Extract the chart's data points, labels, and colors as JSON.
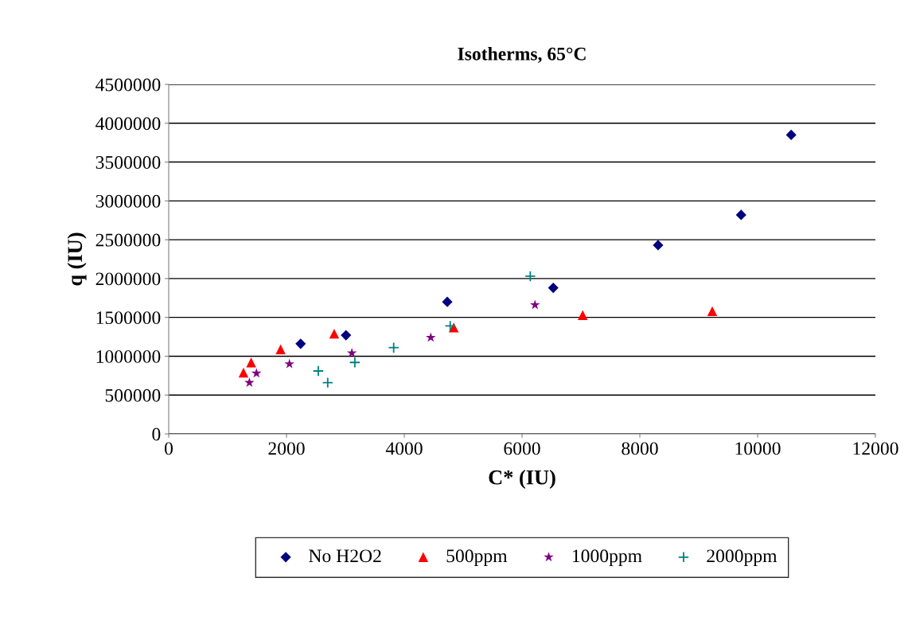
{
  "chart_data": {
    "type": "scatter",
    "title": "Isotherms, 65°C",
    "xlabel": "C* (IU)",
    "ylabel": "q (IU)",
    "xlim": [
      0,
      12000
    ],
    "xticks": [
      0,
      2000,
      4000,
      6000,
      8000,
      10000,
      12000
    ],
    "ylim": [
      0,
      4500000
    ],
    "yticks": [
      0,
      500000,
      1000000,
      1500000,
      2000000,
      2500000,
      3000000,
      3500000,
      4000000,
      4500000
    ],
    "grid": "y",
    "legend": "bottom",
    "series": [
      {
        "name": "No H2O2",
        "color": "#000080",
        "marker": "diamond",
        "x": [
          2240,
          3010,
          4730,
          6530,
          8310,
          9720,
          10570
        ],
        "values": [
          1160000,
          1270000,
          1700000,
          1880000,
          2430000,
          2820000,
          3850000
        ]
      },
      {
        "name": "500ppm",
        "color": "#ff0000",
        "marker": "triangle",
        "x": [
          1270,
          1400,
          1900,
          2810,
          4840,
          7030,
          9230
        ],
        "values": [
          790000,
          920000,
          1090000,
          1290000,
          1370000,
          1530000,
          1580000
        ]
      },
      {
        "name": "1000ppm",
        "color": "#800080",
        "marker": "star",
        "x": [
          1370,
          1490,
          2050,
          3110,
          4450,
          6220
        ],
        "values": [
          660000,
          780000,
          900000,
          1040000,
          1240000,
          1660000
        ]
      },
      {
        "name": "2000ppm",
        "color": "#008080",
        "marker": "cross",
        "x": [
          2540,
          2700,
          3160,
          3820,
          4780,
          6140
        ],
        "values": [
          810000,
          660000,
          920000,
          1110000,
          1390000,
          2030000
        ]
      }
    ]
  }
}
